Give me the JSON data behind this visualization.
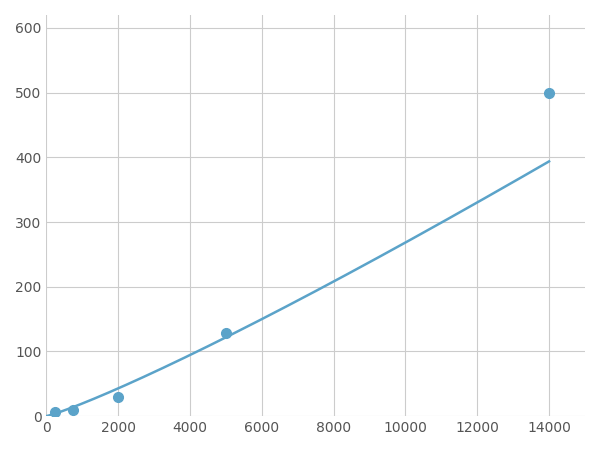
{
  "x": [
    250,
    750,
    2000,
    5000,
    14000
  ],
  "y": [
    6,
    10,
    30,
    128,
    500
  ],
  "line_color": "#5BA3C9",
  "marker_color": "#5BA3C9",
  "marker_size": 7,
  "line_width": 1.8,
  "xlim": [
    0,
    15000
  ],
  "ylim": [
    0,
    620
  ],
  "xticks": [
    0,
    2000,
    4000,
    6000,
    8000,
    10000,
    12000,
    14000
  ],
  "yticks": [
    0,
    100,
    200,
    300,
    400,
    500,
    600
  ],
  "xtick_labels": [
    "0",
    "2000",
    "4000",
    "6000",
    "8000",
    "10000",
    "12000",
    "14000"
  ],
  "ytick_labels": [
    "0",
    "100",
    "200",
    "300",
    "400",
    "500",
    "600"
  ],
  "grid": true,
  "grid_color": "#cccccc",
  "grid_linewidth": 0.8,
  "background_color": "#ffffff",
  "figsize": [
    6.0,
    4.5
  ],
  "dpi": 100
}
